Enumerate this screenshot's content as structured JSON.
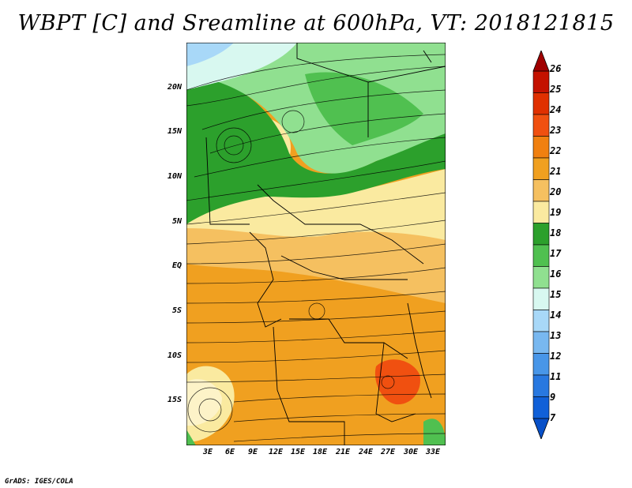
{
  "title": "WBPT [C] and Sreamline at 600hPa, VT: 2018121815",
  "credit": "GrADS: IGES/COLA",
  "map": {
    "lat_labels": [
      "20N",
      "15N",
      "10N",
      "5N",
      "EQ",
      "5S",
      "10S",
      "15S"
    ],
    "lon_labels": [
      "3E",
      "6E",
      "9E",
      "12E",
      "15E",
      "18E",
      "21E",
      "24E",
      "27E",
      "30E",
      "33E"
    ]
  },
  "colorbar": {
    "labels": [
      "26",
      "25",
      "24",
      "23",
      "22",
      "21",
      "20",
      "19",
      "18",
      "17",
      "16",
      "15",
      "14",
      "13",
      "12",
      "11",
      "9",
      "7"
    ],
    "colors": [
      "#a00000",
      "#c41200",
      "#e03000",
      "#f05010",
      "#f08010",
      "#f0a020",
      "#f5c060",
      "#faeaa0",
      "#2ca02c",
      "#50c050",
      "#90e090",
      "#d8f8f0",
      "#a8d8f8",
      "#78b8f0",
      "#4896e8",
      "#2878e0",
      "#1060d8",
      "#0850c8"
    ]
  }
}
